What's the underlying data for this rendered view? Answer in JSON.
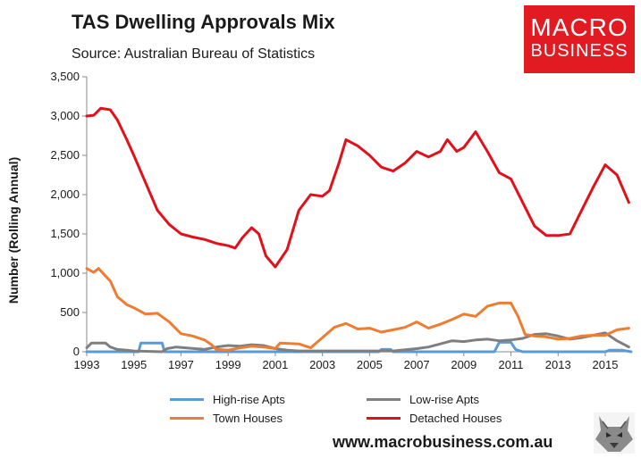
{
  "header": {
    "title": "TAS Dwelling Approvals Mix",
    "subtitle": "Source: Australian Bureau of Statistics"
  },
  "logo": {
    "line1": "MACRO",
    "line2": "BUSINESS"
  },
  "footer": {
    "url": "www.macrobusiness.com.au"
  },
  "colors": {
    "high_rise": "#5b9bd5",
    "low_rise": "#7f7f7f",
    "town_houses": "#ed7d31",
    "detached": "#e0111a",
    "logo_bg": "#e21b23"
  },
  "chart_data": {
    "type": "line",
    "title": "TAS Dwelling Approvals Mix",
    "xlabel": "",
    "ylabel": "Number (Rolling Annual)",
    "xlim": [
      1993,
      2016.1
    ],
    "ylim": [
      0,
      3500
    ],
    "x_ticks": [
      1993,
      1995,
      1997,
      1999,
      2001,
      2003,
      2005,
      2007,
      2009,
      2011,
      2013,
      2015
    ],
    "x_tick_labels": [
      "1993",
      "1995",
      "1997",
      "1999",
      "2001",
      "2003",
      "2005",
      "2007",
      "2009",
      "2011",
      "2013",
      "2015"
    ],
    "y_ticks": [
      0,
      500,
      1000,
      1500,
      2000,
      2500,
      3000,
      3500
    ],
    "y_tick_labels": [
      "0",
      "500",
      "1,000",
      "1,500",
      "2,000",
      "2,500",
      "3,000",
      "3,500"
    ],
    "grid": false,
    "legend_position": "bottom",
    "series": [
      {
        "name": "High-rise Apts",
        "color": "#5b9bd5",
        "points": [
          [
            1993,
            0
          ],
          [
            1995.2,
            0
          ],
          [
            1995.3,
            110
          ],
          [
            1996.2,
            110
          ],
          [
            1996.3,
            0
          ],
          [
            2005.4,
            0
          ],
          [
            2005.5,
            30
          ],
          [
            2005.9,
            30
          ],
          [
            2006.0,
            0
          ],
          [
            2010.3,
            0
          ],
          [
            2010.5,
            120
          ],
          [
            2011.0,
            120
          ],
          [
            2011.2,
            30
          ],
          [
            2011.5,
            0
          ],
          [
            2015.0,
            0
          ],
          [
            2015.2,
            20
          ],
          [
            2015.7,
            20
          ],
          [
            2016.1,
            0
          ]
        ]
      },
      {
        "name": "Low-rise Apts",
        "color": "#7f7f7f",
        "points": [
          [
            1993,
            50
          ],
          [
            1993.2,
            110
          ],
          [
            1993.8,
            110
          ],
          [
            1994.0,
            60
          ],
          [
            1994.3,
            30
          ],
          [
            1994.7,
            20
          ],
          [
            1995,
            10
          ],
          [
            1996.2,
            0
          ],
          [
            1996.4,
            40
          ],
          [
            1996.8,
            60
          ],
          [
            1997.2,
            50
          ],
          [
            1998.0,
            30
          ],
          [
            1998.5,
            60
          ],
          [
            1999.0,
            80
          ],
          [
            1999.5,
            70
          ],
          [
            2000.0,
            90
          ],
          [
            2000.5,
            80
          ],
          [
            2001.0,
            40
          ],
          [
            2001.5,
            20
          ],
          [
            2002.0,
            10
          ],
          [
            2003.0,
            10
          ],
          [
            2004.0,
            10
          ],
          [
            2005.0,
            10
          ],
          [
            2006.0,
            10
          ],
          [
            2007.0,
            40
          ],
          [
            2007.5,
            60
          ],
          [
            2008.0,
            100
          ],
          [
            2008.5,
            140
          ],
          [
            2009.0,
            130
          ],
          [
            2009.5,
            150
          ],
          [
            2010.0,
            160
          ],
          [
            2010.5,
            140
          ],
          [
            2011.0,
            150
          ],
          [
            2011.5,
            170
          ],
          [
            2012.0,
            220
          ],
          [
            2012.5,
            230
          ],
          [
            2013.0,
            200
          ],
          [
            2013.5,
            160
          ],
          [
            2014.0,
            180
          ],
          [
            2014.5,
            210
          ],
          [
            2015.0,
            240
          ],
          [
            2015.5,
            140
          ],
          [
            2016.0,
            60
          ]
        ]
      },
      {
        "name": "Town Houses",
        "color": "#ed7d31",
        "points": [
          [
            1993,
            1060
          ],
          [
            1993.3,
            1010
          ],
          [
            1993.5,
            1060
          ],
          [
            1994.0,
            900
          ],
          [
            1994.3,
            700
          ],
          [
            1994.7,
            600
          ],
          [
            1995.0,
            560
          ],
          [
            1995.5,
            480
          ],
          [
            1996.0,
            490
          ],
          [
            1996.5,
            380
          ],
          [
            1997.0,
            230
          ],
          [
            1997.5,
            200
          ],
          [
            1998.0,
            150
          ],
          [
            1998.3,
            90
          ],
          [
            1998.5,
            30
          ],
          [
            1999.0,
            20
          ],
          [
            1999.5,
            50
          ],
          [
            2000.0,
            70
          ],
          [
            2000.5,
            60
          ],
          [
            2001.0,
            40
          ],
          [
            2001.2,
            110
          ],
          [
            2002.0,
            100
          ],
          [
            2002.5,
            50
          ],
          [
            2003.0,
            180
          ],
          [
            2003.5,
            310
          ],
          [
            2004.0,
            360
          ],
          [
            2004.5,
            290
          ],
          [
            2005.0,
            300
          ],
          [
            2005.5,
            250
          ],
          [
            2006.0,
            280
          ],
          [
            2006.5,
            310
          ],
          [
            2007.0,
            380
          ],
          [
            2007.5,
            300
          ],
          [
            2008.0,
            350
          ],
          [
            2008.5,
            410
          ],
          [
            2009.0,
            480
          ],
          [
            2009.5,
            450
          ],
          [
            2010.0,
            580
          ],
          [
            2010.5,
            620
          ],
          [
            2011.0,
            620
          ],
          [
            2011.3,
            450
          ],
          [
            2011.6,
            220
          ],
          [
            2012.0,
            200
          ],
          [
            2012.5,
            190
          ],
          [
            2013.0,
            160
          ],
          [
            2013.5,
            170
          ],
          [
            2014.0,
            200
          ],
          [
            2014.5,
            210
          ],
          [
            2015.0,
            210
          ],
          [
            2015.5,
            280
          ],
          [
            2016.0,
            300
          ]
        ]
      },
      {
        "name": "Detached Houses",
        "color": "#e0111a",
        "points": [
          [
            1993,
            3000
          ],
          [
            1993.3,
            3010
          ],
          [
            1993.6,
            3100
          ],
          [
            1994.0,
            3080
          ],
          [
            1994.3,
            2950
          ],
          [
            1994.7,
            2700
          ],
          [
            1995.0,
            2500
          ],
          [
            1995.5,
            2150
          ],
          [
            1996.0,
            1800
          ],
          [
            1996.5,
            1620
          ],
          [
            1997.0,
            1500
          ],
          [
            1997.5,
            1460
          ],
          [
            1998.0,
            1430
          ],
          [
            1998.5,
            1380
          ],
          [
            1999.0,
            1350
          ],
          [
            1999.3,
            1320
          ],
          [
            1999.6,
            1450
          ],
          [
            2000.0,
            1580
          ],
          [
            2000.3,
            1500
          ],
          [
            2000.6,
            1220
          ],
          [
            2001.0,
            1080
          ],
          [
            2001.5,
            1300
          ],
          [
            2002.0,
            1800
          ],
          [
            2002.5,
            2000
          ],
          [
            2003.0,
            1980
          ],
          [
            2003.3,
            2050
          ],
          [
            2003.7,
            2400
          ],
          [
            2004.0,
            2700
          ],
          [
            2004.5,
            2620
          ],
          [
            2005.0,
            2500
          ],
          [
            2005.5,
            2350
          ],
          [
            2006.0,
            2300
          ],
          [
            2006.5,
            2400
          ],
          [
            2007.0,
            2550
          ],
          [
            2007.5,
            2480
          ],
          [
            2008.0,
            2550
          ],
          [
            2008.3,
            2700
          ],
          [
            2008.7,
            2550
          ],
          [
            2009.0,
            2600
          ],
          [
            2009.5,
            2800
          ],
          [
            2010.0,
            2550
          ],
          [
            2010.5,
            2280
          ],
          [
            2011.0,
            2200
          ],
          [
            2011.5,
            1900
          ],
          [
            2012.0,
            1600
          ],
          [
            2012.5,
            1480
          ],
          [
            2013.0,
            1480
          ],
          [
            2013.5,
            1500
          ],
          [
            2014.0,
            1800
          ],
          [
            2014.5,
            2100
          ],
          [
            2015.0,
            2380
          ],
          [
            2015.5,
            2250
          ],
          [
            2016.0,
            1900
          ]
        ]
      }
    ]
  }
}
